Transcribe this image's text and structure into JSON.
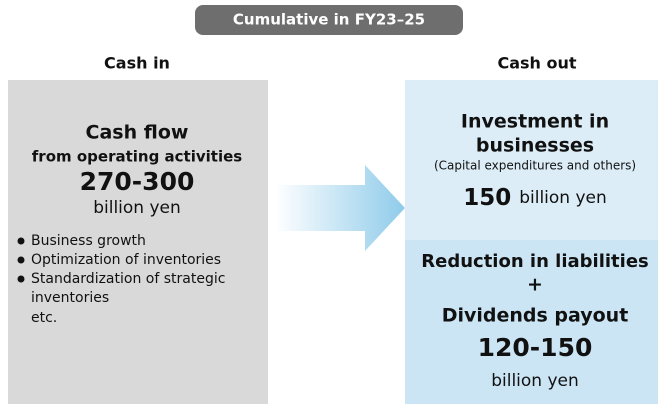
{
  "header": {
    "title": "Cumulative in FY23–25"
  },
  "cash_in": {
    "heading": "Cash in",
    "title": "Cash flow",
    "subtitle": "from operating activities",
    "amount": "270-300",
    "unit": "billion yen",
    "bullets": [
      "Business growth",
      "Optimization of inventories",
      "Standardization of strategic",
      "inventories",
      "etc."
    ]
  },
  "cash_out": {
    "heading": "Cash out",
    "investment": {
      "title_line1": "Investment in",
      "title_line2": "businesses",
      "note": "(Capital expenditures and others)",
      "amount": "150",
      "unit": "billion yen"
    },
    "returns": {
      "line1": "Reduction in liabilities",
      "plus": "+",
      "line2": "Dividends payout",
      "amount": "120-150",
      "unit": "billion yen"
    }
  }
}
